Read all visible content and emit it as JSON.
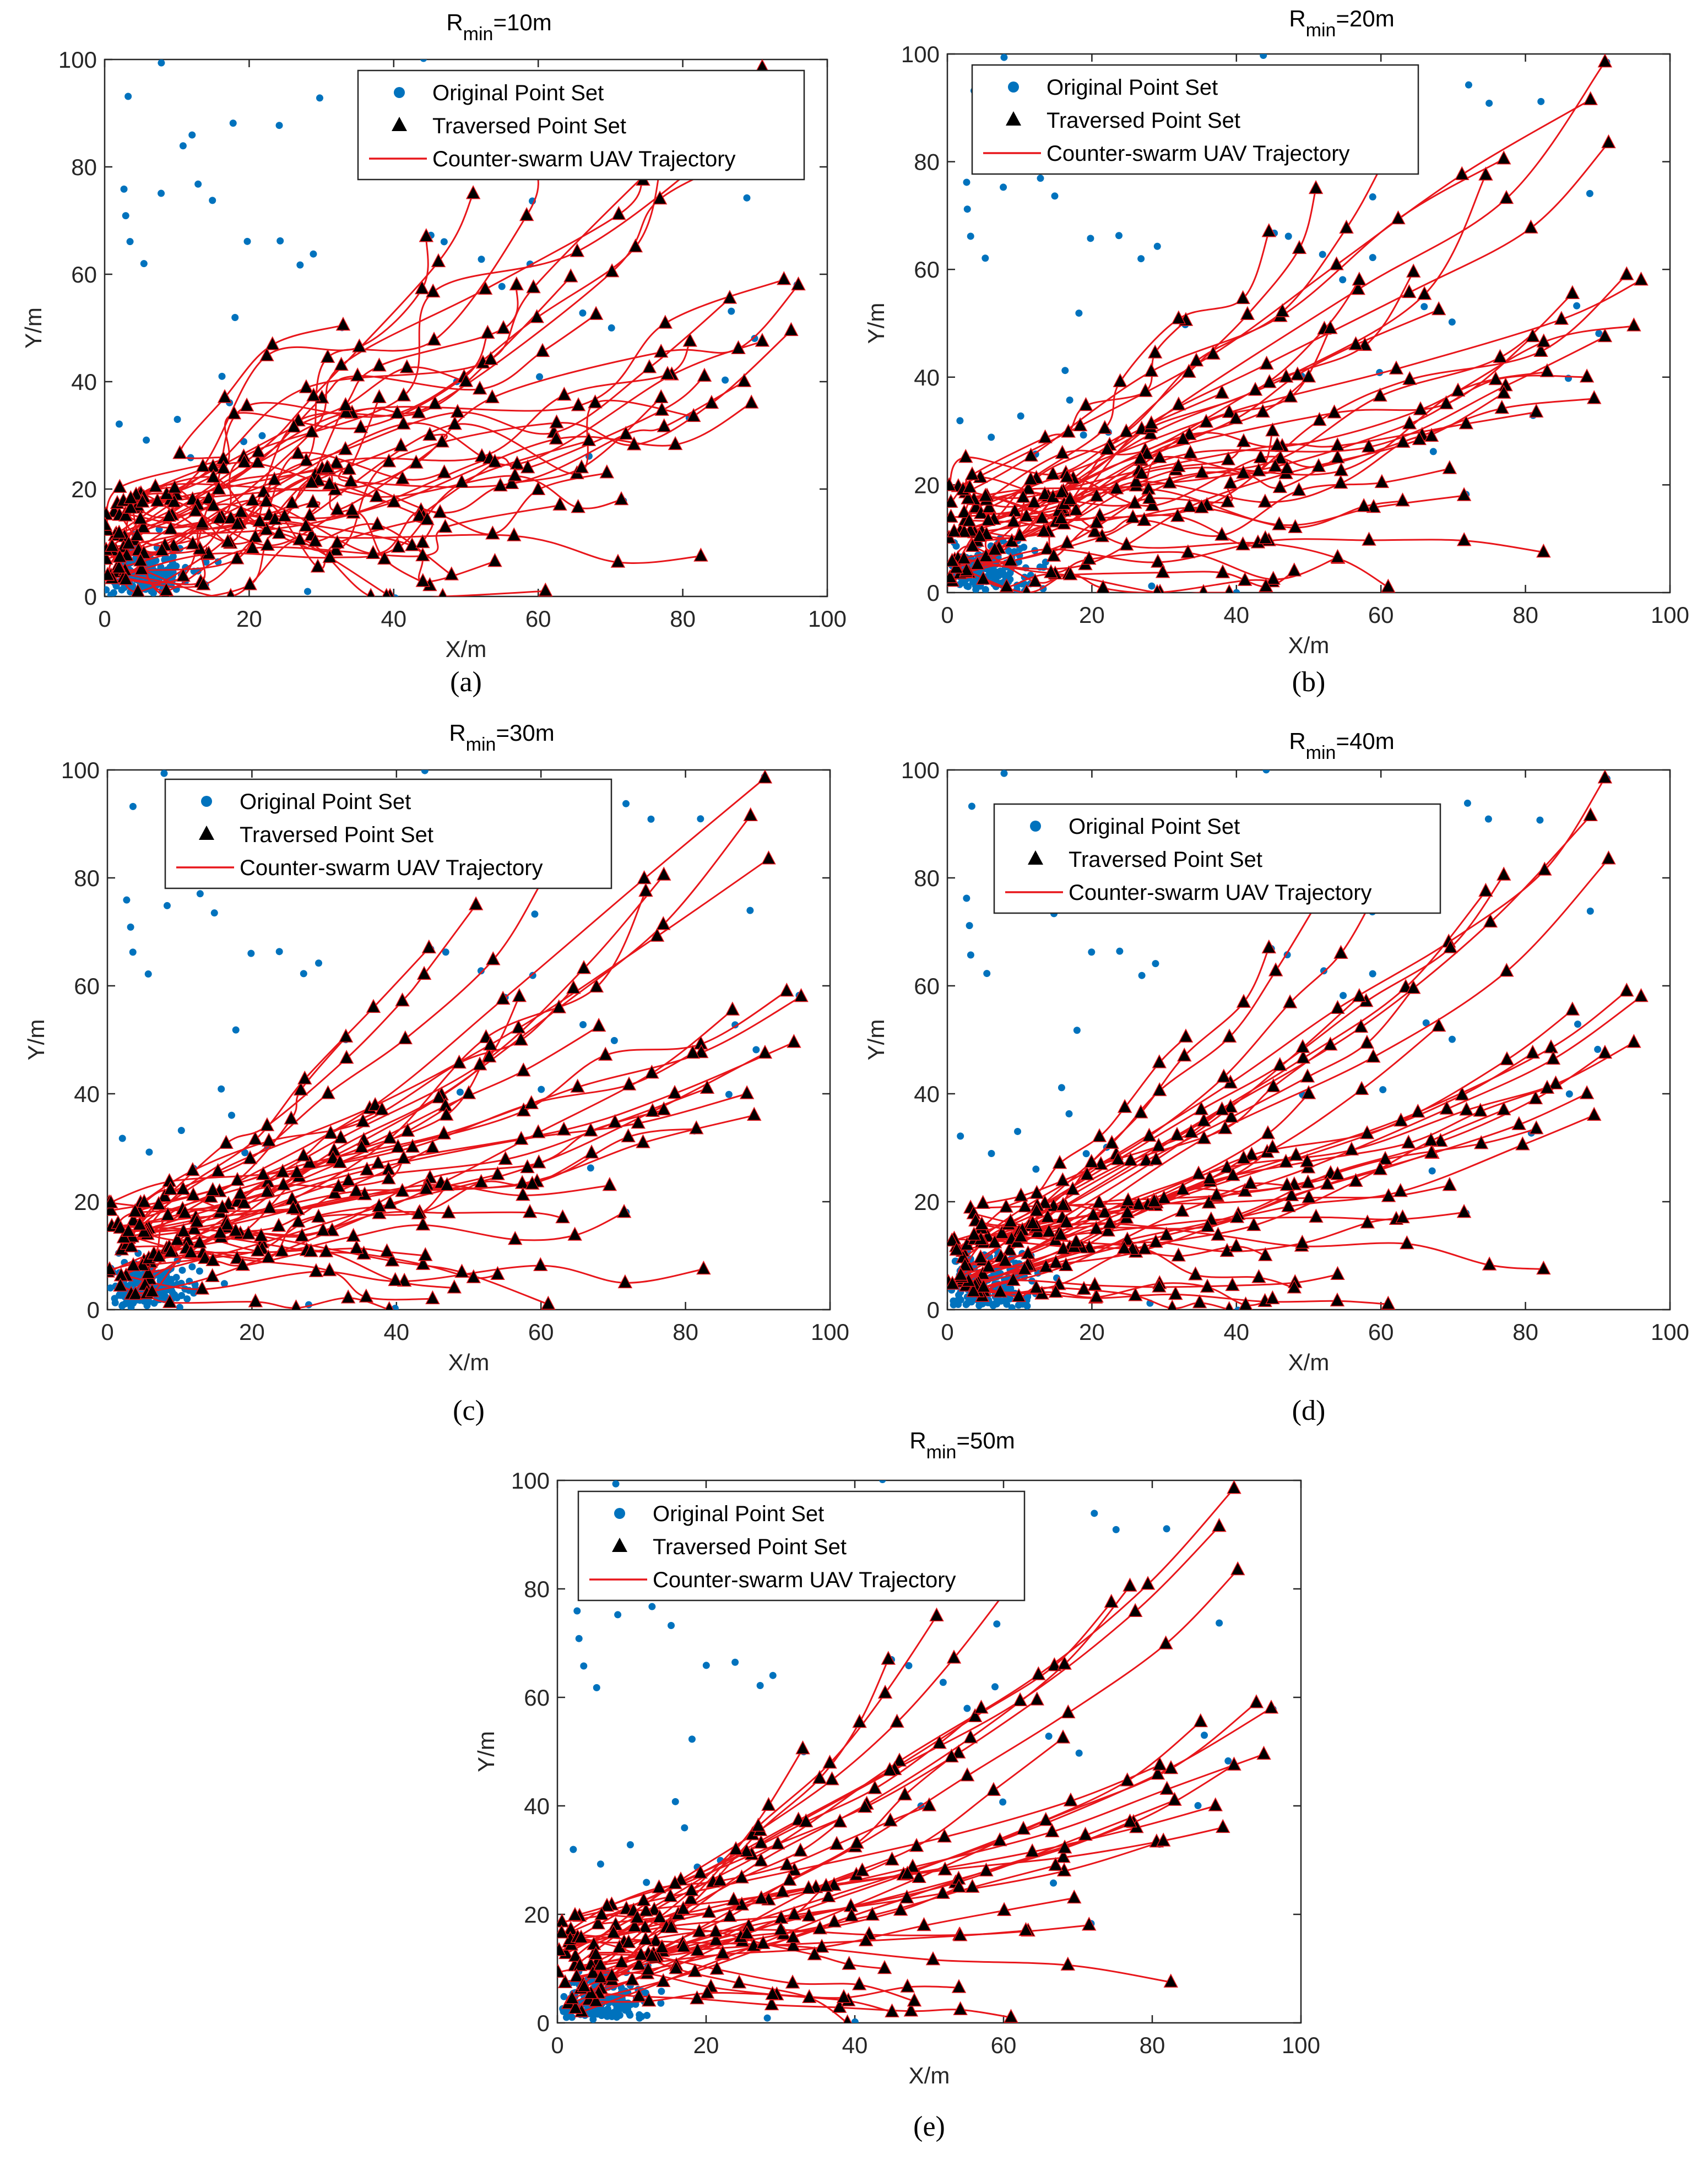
{
  "figure": {
    "legend_labels": {
      "original": "Original Point Set",
      "traversed": "Traversed Point Set",
      "trajectory": "Counter-swarm UAV Trajectory"
    }
  },
  "colors": {
    "original": "#0072bd",
    "traversed": "#000000",
    "trajectory": "#e8161b",
    "axis": "#262626"
  },
  "chart_data": [
    {
      "type": "scatter",
      "panel_label": "(a)",
      "title_prefix": "R",
      "title_sub": "min",
      "title_suffix": "=10m",
      "xlabel": "X/m",
      "ylabel": "Y/m",
      "xlim": [
        0,
        100
      ],
      "ylim": [
        0,
        100
      ],
      "xticks": [
        0,
        20,
        40,
        60,
        80,
        100
      ],
      "yticks": [
        0,
        20,
        40,
        60,
        80,
        100
      ],
      "trajectory_style": "loopy",
      "series": [
        {
          "name": "Original Point Set",
          "marker": "dot",
          "seed": 11
        },
        {
          "name": "Traversed Point Set",
          "marker": "triangle"
        },
        {
          "name": "Counter-swarm UAV Trajectory",
          "marker": "line"
        }
      ]
    },
    {
      "type": "scatter",
      "panel_label": "(b)",
      "title_prefix": "R",
      "title_sub": "min",
      "title_suffix": "=20m",
      "xlabel": "X/m",
      "ylabel": "Y/m",
      "xlim": [
        0,
        100
      ],
      "ylim": [
        0,
        100
      ],
      "xticks": [
        0,
        20,
        40,
        60,
        80,
        100
      ],
      "yticks": [
        0,
        20,
        40,
        60,
        80,
        100
      ],
      "trajectory_style": "moderate",
      "series": [
        {
          "name": "Original Point Set",
          "marker": "dot",
          "seed": 22
        },
        {
          "name": "Traversed Point Set",
          "marker": "triangle"
        },
        {
          "name": "Counter-swarm UAV Trajectory",
          "marker": "line"
        }
      ]
    },
    {
      "type": "scatter",
      "panel_label": "(c)",
      "title_prefix": "R",
      "title_sub": "min",
      "title_suffix": "=30m",
      "xlabel": "X/m",
      "ylabel": "Y/m",
      "xlim": [
        0,
        100
      ],
      "ylim": [
        0,
        100
      ],
      "xticks": [
        0,
        20,
        40,
        60,
        80,
        100
      ],
      "yticks": [
        0,
        20,
        40,
        60,
        80,
        100
      ],
      "trajectory_style": "smooth",
      "series": [
        {
          "name": "Original Point Set",
          "marker": "dot",
          "seed": 33
        },
        {
          "name": "Traversed Point Set",
          "marker": "triangle"
        },
        {
          "name": "Counter-swarm UAV Trajectory",
          "marker": "line"
        }
      ]
    },
    {
      "type": "scatter",
      "panel_label": "(d)",
      "title_prefix": "R",
      "title_sub": "min",
      "title_suffix": "=40m",
      "xlabel": "X/m",
      "ylabel": "Y/m",
      "xlim": [
        0,
        100
      ],
      "ylim": [
        0,
        100
      ],
      "xticks": [
        0,
        20,
        40,
        60,
        80,
        100
      ],
      "yticks": [
        0,
        20,
        40,
        60,
        80,
        100
      ],
      "trajectory_style": "smoother",
      "series": [
        {
          "name": "Original Point Set",
          "marker": "dot",
          "seed": 44
        },
        {
          "name": "Traversed Point Set",
          "marker": "triangle"
        },
        {
          "name": "Counter-swarm UAV Trajectory",
          "marker": "line"
        }
      ]
    },
    {
      "type": "scatter",
      "panel_label": "(e)",
      "title_prefix": "R",
      "title_sub": "min",
      "title_suffix": "=50m",
      "xlabel": "X/m",
      "ylabel": "Y/m",
      "xlim": [
        0,
        100
      ],
      "ylim": [
        0,
        100
      ],
      "xticks": [
        0,
        20,
        40,
        60,
        80,
        100
      ],
      "yticks": [
        0,
        20,
        40,
        60,
        80,
        100
      ],
      "trajectory_style": "smoothest",
      "series": [
        {
          "name": "Original Point Set",
          "marker": "dot",
          "seed": 55
        },
        {
          "name": "Traversed Point Set",
          "marker": "triangle"
        },
        {
          "name": "Counter-swarm UAV Trajectory",
          "marker": "line"
        }
      ]
    }
  ],
  "shared_points": {
    "original_sample": [
      [
        8,
        99.5
      ],
      [
        91,
        98.5
      ],
      [
        44,
        100
      ],
      [
        3.5,
        93
      ],
      [
        30,
        93
      ],
      [
        2.5,
        76
      ],
      [
        3,
        71
      ],
      [
        3.5,
        66
      ],
      [
        5.5,
        62
      ],
      [
        12,
        86
      ],
      [
        18,
        88
      ],
      [
        24,
        88
      ],
      [
        29,
        64
      ],
      [
        27,
        62
      ],
      [
        15,
        73.5
      ],
      [
        59,
        73.5
      ],
      [
        60,
        79
      ],
      [
        72,
        94
      ],
      [
        75,
        91
      ],
      [
        82,
        91
      ],
      [
        89,
        74
      ],
      [
        45,
        67
      ],
      [
        52,
        63
      ],
      [
        47,
        66
      ],
      [
        18,
        52
      ],
      [
        33,
        50
      ],
      [
        55,
        58
      ],
      [
        66,
        53
      ],
      [
        87,
        53
      ],
      [
        90,
        48
      ],
      [
        86,
        40
      ],
      [
        72,
        18
      ],
      [
        49,
        40
      ],
      [
        59,
        62
      ],
      [
        70,
        50
      ],
      [
        96,
        58
      ],
      [
        8,
        75
      ],
      [
        13,
        77
      ],
      [
        20,
        66
      ],
      [
        24,
        66.5
      ],
      [
        11,
        84
      ],
      [
        60,
        41
      ],
      [
        81,
        33
      ],
      [
        67,
        26
      ],
      [
        40,
        0
      ],
      [
        28,
        1
      ],
      [
        22,
        30
      ],
      [
        16,
        41
      ],
      [
        17,
        36
      ],
      [
        19,
        29
      ],
      [
        10,
        33
      ],
      [
        6,
        29
      ],
      [
        12,
        26
      ],
      [
        2,
        32
      ]
    ],
    "traversed_endpoints": [
      [
        91,
        98.5
      ],
      [
        89,
        91.5
      ],
      [
        91.5,
        83.5
      ],
      [
        74.5,
        77.5
      ],
      [
        77,
        80.5
      ],
      [
        60,
        79
      ],
      [
        64.5,
        59.5
      ],
      [
        57,
        58
      ],
      [
        94,
        59
      ],
      [
        96,
        58
      ],
      [
        86.5,
        55.5
      ],
      [
        95,
        49.5
      ],
      [
        91,
        47.5
      ],
      [
        68,
        52.5
      ],
      [
        81,
        47.5
      ],
      [
        88.5,
        40
      ],
      [
        83,
        41
      ],
      [
        89.5,
        36
      ],
      [
        81.5,
        33.5
      ],
      [
        77,
        37
      ],
      [
        71.5,
        18
      ],
      [
        69.5,
        23
      ],
      [
        67,
        29
      ],
      [
        82.5,
        7.5
      ],
      [
        61,
        1
      ],
      [
        45,
        2
      ],
      [
        39,
        0
      ],
      [
        54,
        6.5
      ],
      [
        63,
        17
      ],
      [
        54,
        25
      ],
      [
        45,
        30
      ],
      [
        38,
        37
      ],
      [
        33,
        50.5
      ],
      [
        44.5,
        67
      ],
      [
        51,
        75
      ],
      [
        53,
        49
      ],
      [
        50,
        40
      ],
      [
        47,
        23
      ],
      [
        41,
        28
      ],
      [
        44,
        10
      ],
      [
        48,
        4
      ]
    ]
  }
}
